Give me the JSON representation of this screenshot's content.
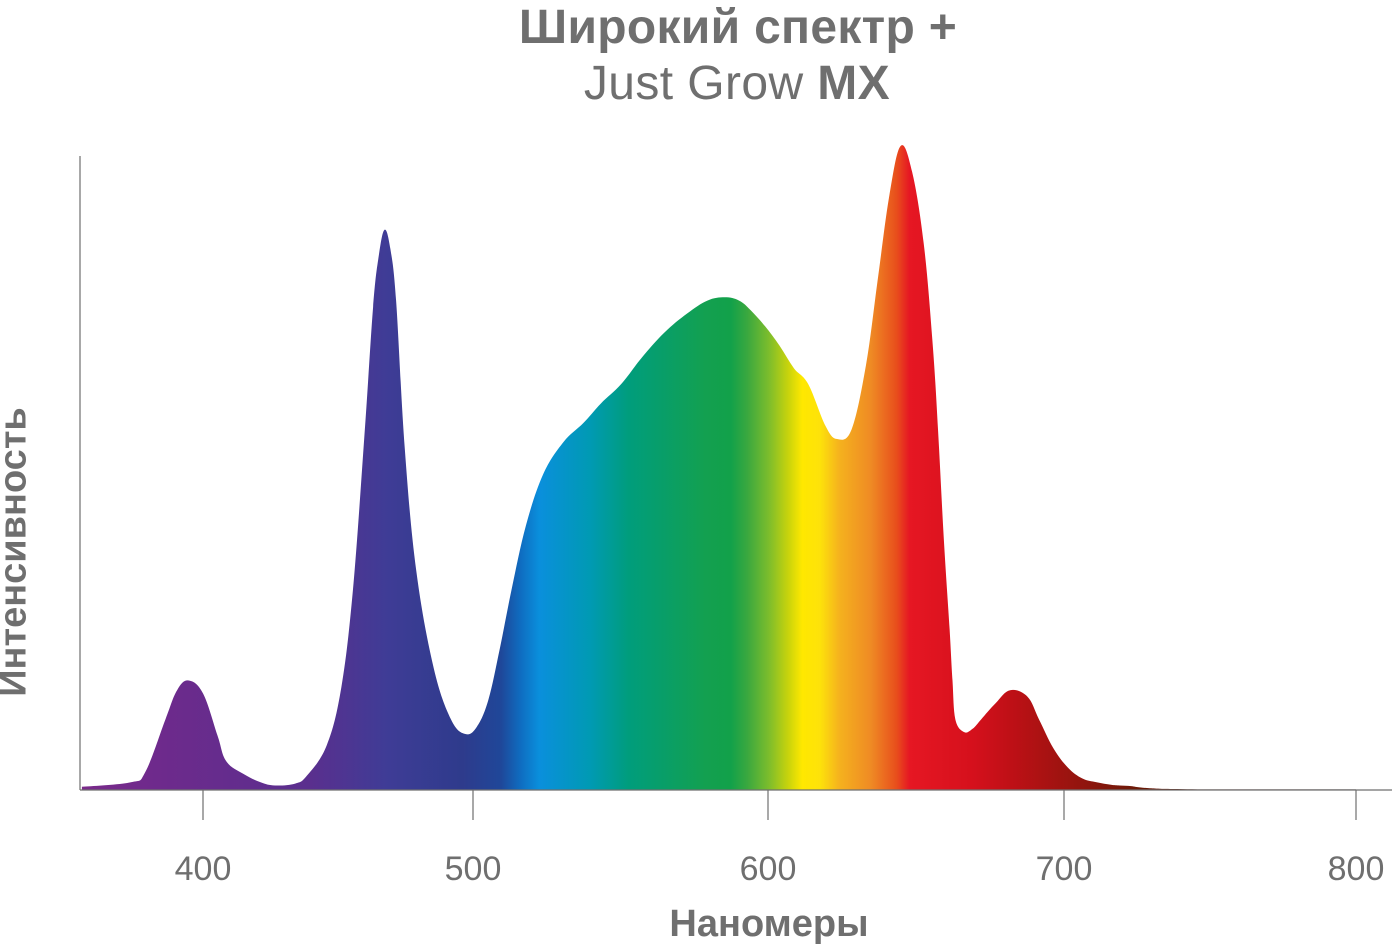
{
  "title": {
    "line1": "Широкий спектр +",
    "line2_regular": "Just Grow ",
    "line2_bold": "MX"
  },
  "chart_data": {
    "type": "area",
    "title": "Широкий спектр + Just Grow MX",
    "xlabel": "Наномеры",
    "ylabel": "Интенсивность",
    "xlim": [
      358,
      812
    ],
    "ylim": [
      0,
      1
    ],
    "x_ticks": [
      400,
      500,
      600,
      700,
      800
    ],
    "y_ticks": [],
    "grid": false,
    "legend": "none",
    "fill": "visible spectrum gradient (violet → blue → cyan → green → yellow → orange → red → dark red)",
    "series": [
      {
        "x": [
          358,
          375,
          380,
          387,
          391,
          395,
          400,
          405,
          408,
          414,
          420,
          425,
          432,
          436,
          443,
          448,
          452,
          456,
          459,
          461,
          463,
          465,
          467,
          470,
          474,
          480,
          486,
          491,
          495,
          499,
          503,
          507,
          512,
          518,
          525,
          532,
          538,
          545,
          552,
          560,
          568,
          575,
          581,
          586,
          590,
          595,
          600,
          605,
          610,
          616,
          620,
          625,
          630,
          634,
          638,
          642,
          646,
          650,
          653,
          655,
          657,
          659,
          660,
          661,
          664,
          667,
          670,
          675,
          680,
          686,
          690,
          695,
          700,
          705,
          710,
          715,
          718,
          722,
          725,
          728,
          732,
          738,
          745,
          752,
          760,
          770,
          780,
          790,
          800
        ],
        "y": [
          0.005,
          0.012,
          0.028,
          0.11,
          0.155,
          0.17,
          0.15,
          0.085,
          0.045,
          0.025,
          0.012,
          0.007,
          0.01,
          0.022,
          0.07,
          0.16,
          0.31,
          0.55,
          0.75,
          0.83,
          0.87,
          0.84,
          0.76,
          0.53,
          0.34,
          0.19,
          0.11,
          0.087,
          0.098,
          0.14,
          0.22,
          0.31,
          0.41,
          0.49,
          0.54,
          0.57,
          0.6,
          0.63,
          0.67,
          0.71,
          0.74,
          0.76,
          0.765,
          0.76,
          0.745,
          0.72,
          0.69,
          0.655,
          0.63,
          0.565,
          0.545,
          0.56,
          0.66,
          0.79,
          0.92,
          1.0,
          0.96,
          0.85,
          0.7,
          0.56,
          0.39,
          0.25,
          0.17,
          0.11,
          0.09,
          0.095,
          0.11,
          0.135,
          0.155,
          0.145,
          0.11,
          0.065,
          0.035,
          0.018,
          0.012,
          0.008,
          0.007,
          0.006,
          0.004,
          0.003,
          0.002,
          0.0015,
          0.001,
          0.001,
          0.001,
          0.001,
          0.001,
          0.001,
          0.001
        ]
      }
    ]
  }
}
